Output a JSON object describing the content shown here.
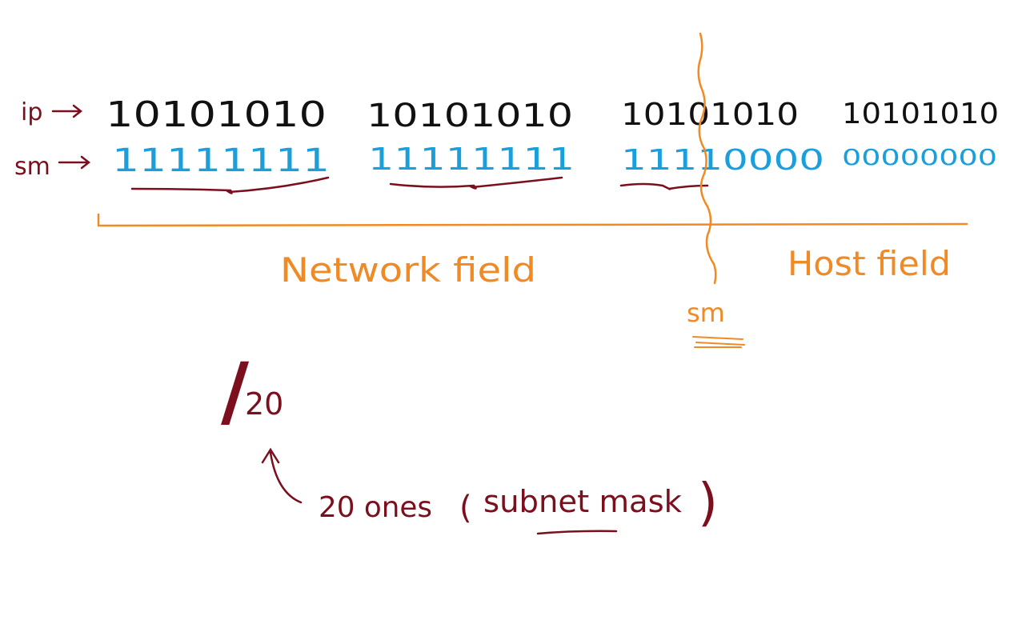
{
  "colors": {
    "ip_bits": "#111111",
    "mask_bits": "#1a9fdc",
    "annotation": "#7b0f1e",
    "fields": "#f08a24"
  },
  "row_labels": {
    "ip": "ip",
    "sm": "sm"
  },
  "ip_octets": [
    "10101010",
    "10101010",
    "10101010",
    "10101010"
  ],
  "mask_octets": [
    "11111111",
    "11111111",
    "11110000",
    "00000000"
  ],
  "fields": {
    "network": "Network field",
    "host": "Host field",
    "divider_label": "sm"
  },
  "cidr": {
    "slash": "/",
    "prefix": "20"
  },
  "note": {
    "text_ones": "20 ones",
    "open_paren": "(",
    "text_mask": "subnet mask",
    "close_paren": ")"
  }
}
